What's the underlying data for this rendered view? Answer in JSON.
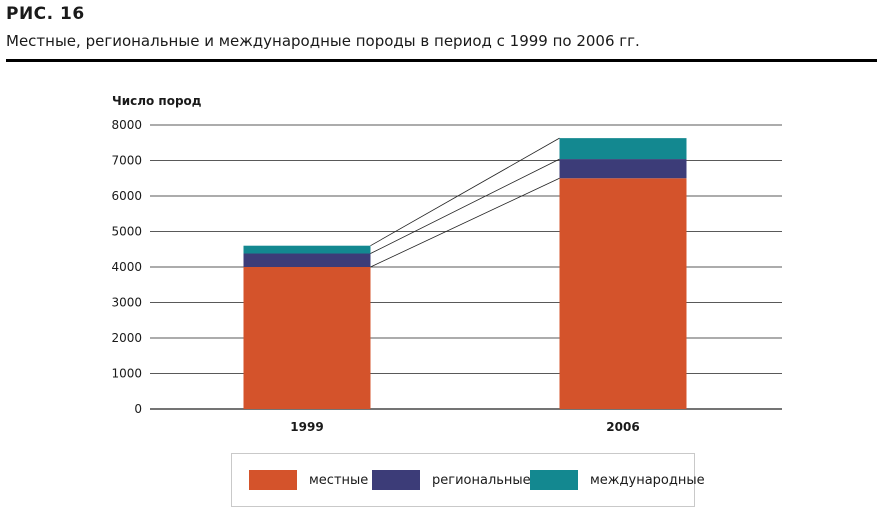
{
  "figure": {
    "label": "РИС.  16",
    "caption": "Местные, региональные и международные породы в период с 1999 по 2006 гг."
  },
  "chart_data": {
    "type": "bar",
    "stacked": true,
    "ylabel": "Число пород",
    "ylim": [
      0,
      8000
    ],
    "yticks": [
      "0",
      "1000",
      "2000",
      "3000",
      "4000",
      "5000",
      "6000",
      "7000",
      "8000"
    ],
    "categories": [
      "1999",
      "2006"
    ],
    "series": [
      {
        "name": "местные",
        "values": [
          4000,
          6500
        ],
        "color": "#d4532b"
      },
      {
        "name": "региональные",
        "values": [
          380,
          540
        ],
        "color": "#3c3c78"
      },
      {
        "name": "международные",
        "values": [
          220,
          590
        ],
        "color": "#138890"
      }
    ],
    "connector_lines": true,
    "grid": true,
    "legend_position": "bottom"
  }
}
